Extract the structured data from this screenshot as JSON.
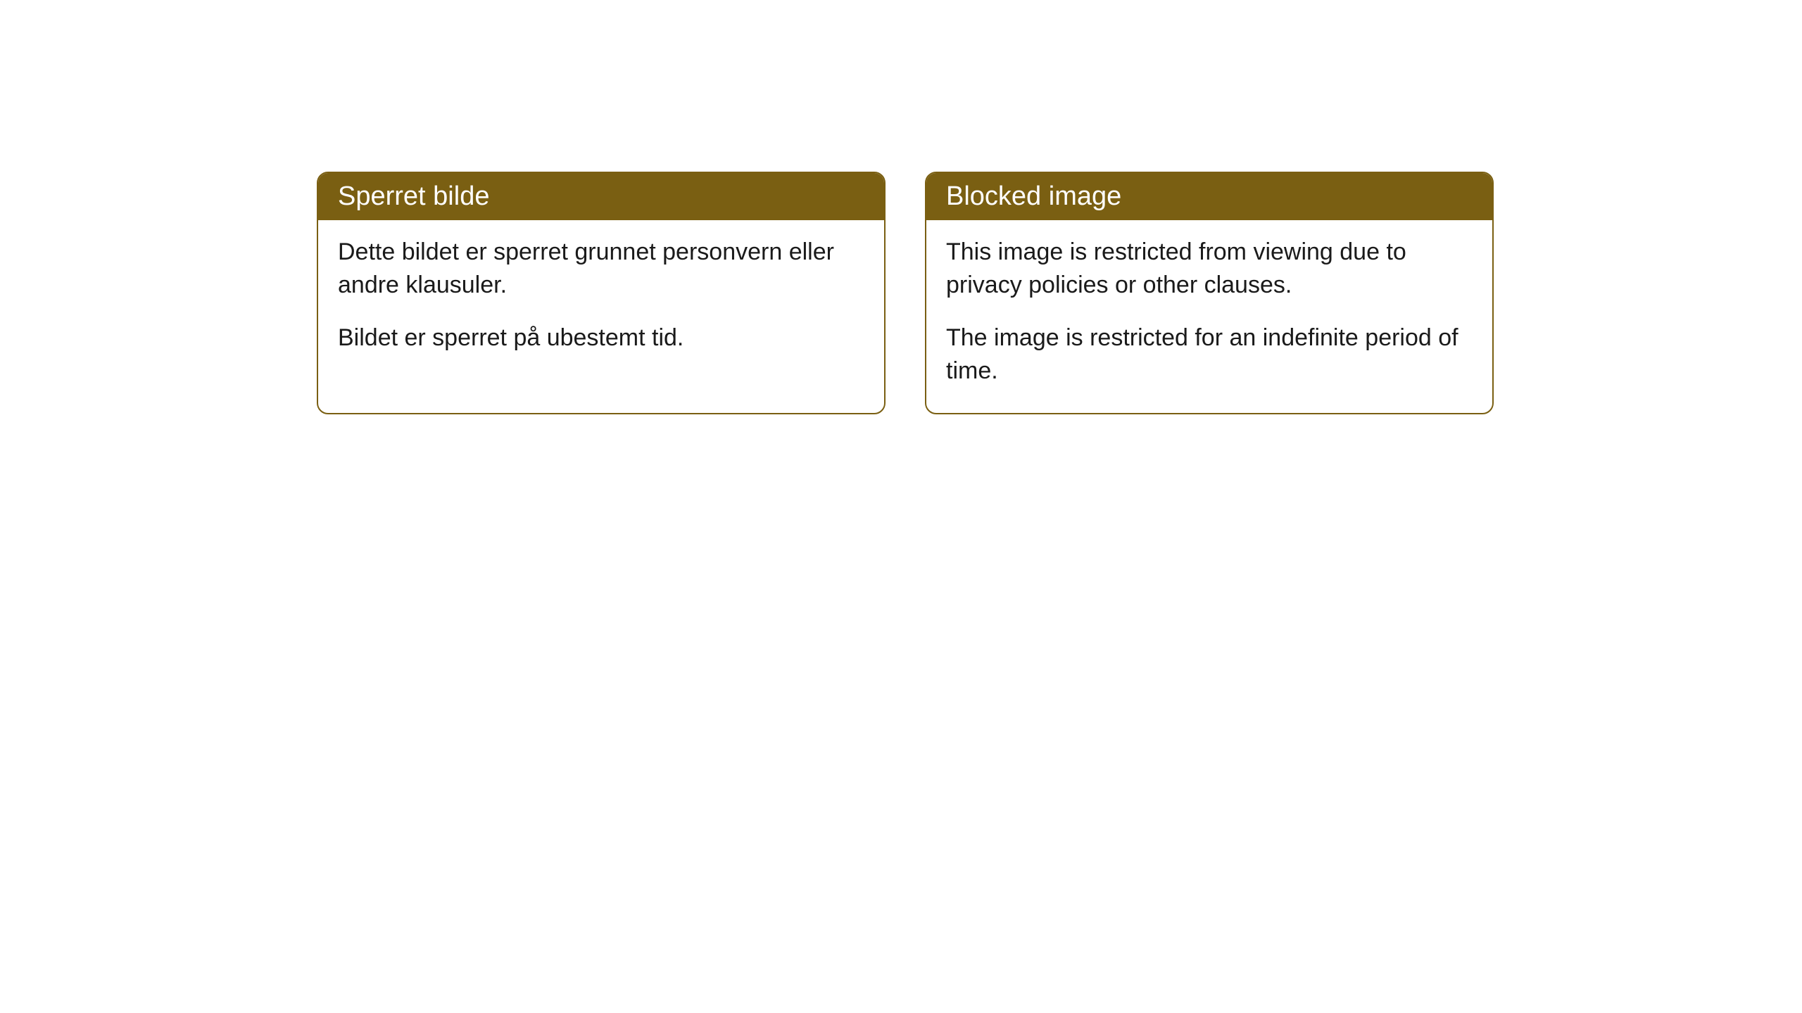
{
  "cards": [
    {
      "title": "Sperret bilde",
      "paragraph1": "Dette bildet er sperret grunnet personvern eller andre klausuler.",
      "paragraph2": "Bildet er sperret på ubestemt tid."
    },
    {
      "title": "Blocked image",
      "paragraph1": "This image is restricted from viewing due to privacy policies or other clauses.",
      "paragraph2": "The image is restricted for an indefinite period of time."
    }
  ],
  "styling": {
    "header_bg_color": "#7a5f12",
    "header_text_color": "#ffffff",
    "border_color": "#7a5f12",
    "body_text_color": "#1a1a1a",
    "background_color": "#ffffff",
    "border_radius": 16,
    "header_fontsize": 38,
    "body_fontsize": 34
  }
}
